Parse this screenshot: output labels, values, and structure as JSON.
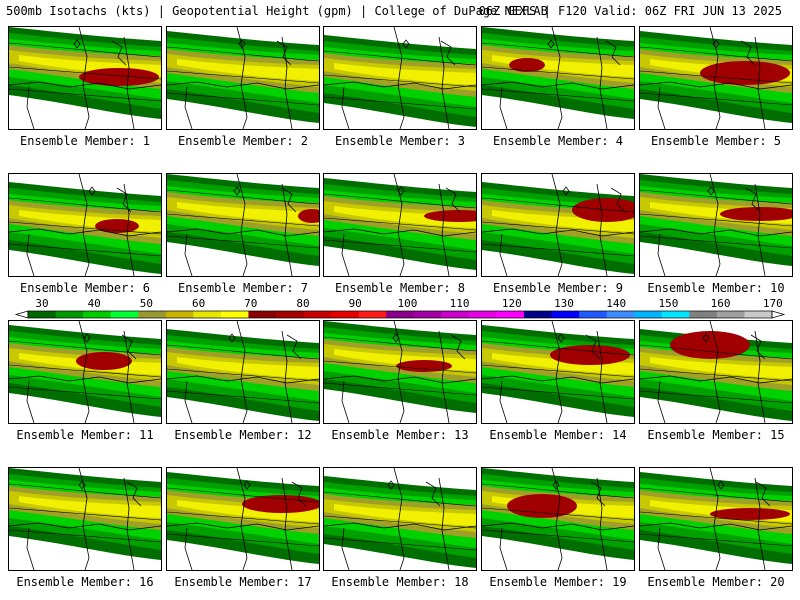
{
  "header": {
    "left": "500mb Isotachs (kts) | Geopotential Height (gpm) | College of DuPage NEXLAB",
    "right": "06Z GEFS | F120 Valid: 06Z FRI JUN 13 2025"
  },
  "members": [
    {
      "label": "Ensemble Member: 1"
    },
    {
      "label": "Ensemble Member: 2"
    },
    {
      "label": "Ensemble Member: 3"
    },
    {
      "label": "Ensemble Member: 4"
    },
    {
      "label": "Ensemble Member: 5"
    },
    {
      "label": "Ensemble Member: 6"
    },
    {
      "label": "Ensemble Member: 7"
    },
    {
      "label": "Ensemble Member: 8"
    },
    {
      "label": "Ensemble Member: 9"
    },
    {
      "label": "Ensemble Member: 10"
    },
    {
      "label": "Ensemble Member: 11"
    },
    {
      "label": "Ensemble Member: 12"
    },
    {
      "label": "Ensemble Member: 13"
    },
    {
      "label": "Ensemble Member: 14"
    },
    {
      "label": "Ensemble Member: 15"
    },
    {
      "label": "Ensemble Member: 16"
    },
    {
      "label": "Ensemble Member: 17"
    },
    {
      "label": "Ensemble Member: 18"
    },
    {
      "label": "Ensemble Member: 19"
    },
    {
      "label": "Ensemble Member: 20"
    }
  ],
  "colorbar": {
    "ticks": [
      "30",
      "40",
      "50",
      "60",
      "70",
      "80",
      "90",
      "100",
      "110",
      "120",
      "130",
      "140",
      "150",
      "160",
      "170"
    ],
    "colors": [
      "#006600",
      "#009900",
      "#00cc00",
      "#00ff33",
      "#999933",
      "#c8b400",
      "#e6e600",
      "#ffff00",
      "#8b0000",
      "#a50000",
      "#c80000",
      "#e60000",
      "#ff1a1a",
      "#8b008b",
      "#a500a5",
      "#cc00cc",
      "#e600e6",
      "#ff00ff",
      "#00008b",
      "#0000ff",
      "#1e5aff",
      "#3c8cff",
      "#00b4ff",
      "#00e6ff",
      "#808080",
      "#a0a0a0",
      "#c8c8c8"
    ]
  },
  "palette": {
    "dark_green": "#006e00",
    "green": "#00a000",
    "light_green": "#00d200",
    "olive": "#a0a028",
    "yellow_olive": "#c8c800",
    "yellow": "#f0f000",
    "maroon": "#a00000",
    "land_bg": "#ffffff"
  }
}
